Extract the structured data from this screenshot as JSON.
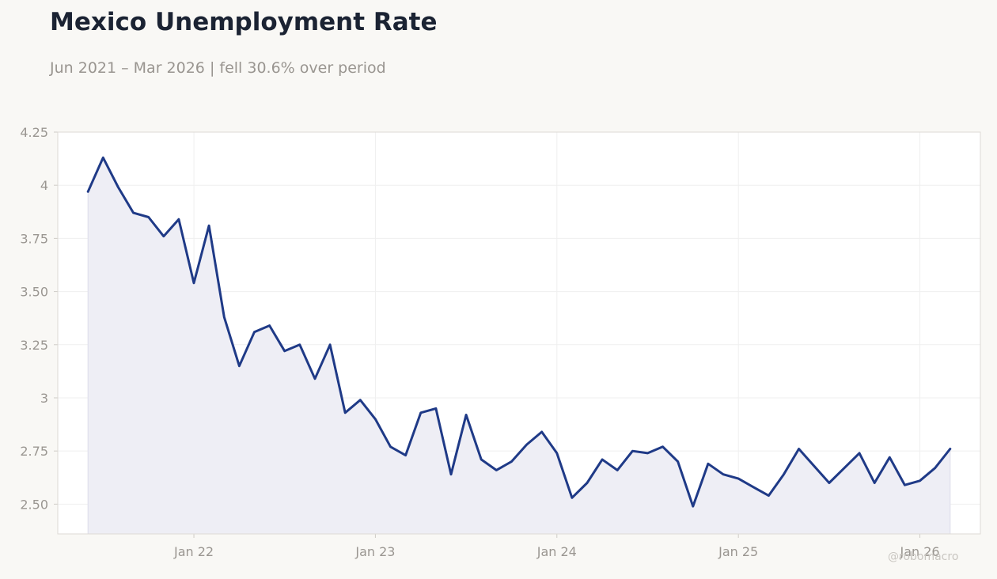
{
  "title": "Mexico Unemployment Rate",
  "subtitle": "Jun 2021 – Mar 2026 | fell 30.6% over period",
  "watermark": "@robomacro",
  "colors": {
    "line": "#1f3a87",
    "fill": "#eeeef5",
    "grid": "#efefef",
    "frame": "#dddad5",
    "background": "#f9f8f5",
    "plot_background": "#ffffff"
  },
  "chart_data": {
    "type": "area",
    "title": "Mexico Unemployment Rate",
    "subtitle": "Jun 2021 – Mar 2026 | fell 30.6% over period",
    "xlabel": "",
    "ylabel": "",
    "x_start": "2021-06",
    "x_end": "2026-03",
    "xlim": [
      "2021-04",
      "2026-05"
    ],
    "ylim": [
      2.36,
      4.25
    ],
    "grid": true,
    "legend": "none",
    "y_ticks": [
      {
        "value": 2.5,
        "label": "2.50"
      },
      {
        "value": 2.75,
        "label": "2.75"
      },
      {
        "value": 3.0,
        "label": "3"
      },
      {
        "value": 3.25,
        "label": "3.25"
      },
      {
        "value": 3.5,
        "label": "3.50"
      },
      {
        "value": 3.75,
        "label": "3.75"
      },
      {
        "value": 4.0,
        "label": "4"
      },
      {
        "value": 4.25,
        "label": "4.25"
      }
    ],
    "x_ticks": [
      {
        "value": "2022-01",
        "label": "Jan 22"
      },
      {
        "value": "2023-01",
        "label": "Jan 23"
      },
      {
        "value": "2024-01",
        "label": "Jan 24"
      },
      {
        "value": "2025-01",
        "label": "Jan 25"
      },
      {
        "value": "2026-01",
        "label": "Jan 26"
      }
    ],
    "series": [
      {
        "values": [
          3.97,
          4.13,
          3.99,
          3.87,
          3.85,
          3.76,
          3.84,
          3.54,
          3.81,
          3.38,
          3.15,
          3.31,
          3.34,
          3.22,
          3.25,
          3.09,
          3.25,
          2.93,
          2.99,
          2.9,
          2.77,
          2.73,
          2.93,
          2.95,
          2.64,
          2.92,
          2.71,
          2.66,
          2.7,
          2.78,
          2.84,
          2.74,
          2.53,
          2.6,
          2.71,
          2.66,
          2.75,
          2.74,
          2.77,
          2.7,
          2.49,
          2.69,
          2.64,
          2.62,
          2.58,
          2.54,
          2.64,
          2.76,
          2.68,
          2.6,
          2.67,
          2.74,
          2.6,
          2.72,
          2.59,
          2.61,
          2.67,
          2.76
        ]
      }
    ]
  }
}
